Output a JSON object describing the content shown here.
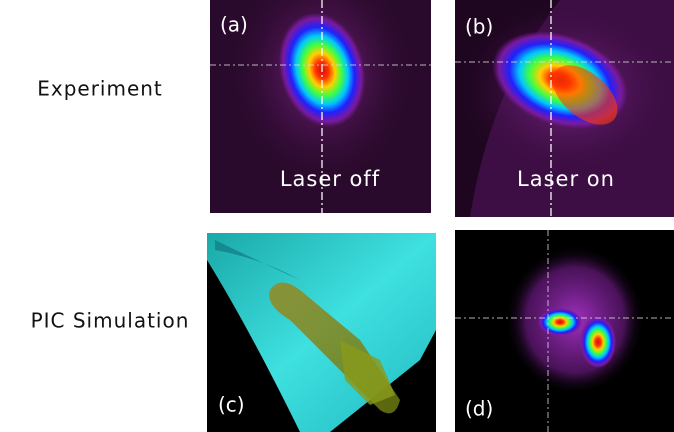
{
  "row_labels": [
    "Experiment",
    "PIC Simulation"
  ],
  "panels": [
    {
      "label": "(a)",
      "caption": "Laser off"
    },
    {
      "label": "(b)",
      "caption": "Laser on"
    },
    {
      "label": "(c)"
    },
    {
      "label": "(d)"
    }
  ]
}
